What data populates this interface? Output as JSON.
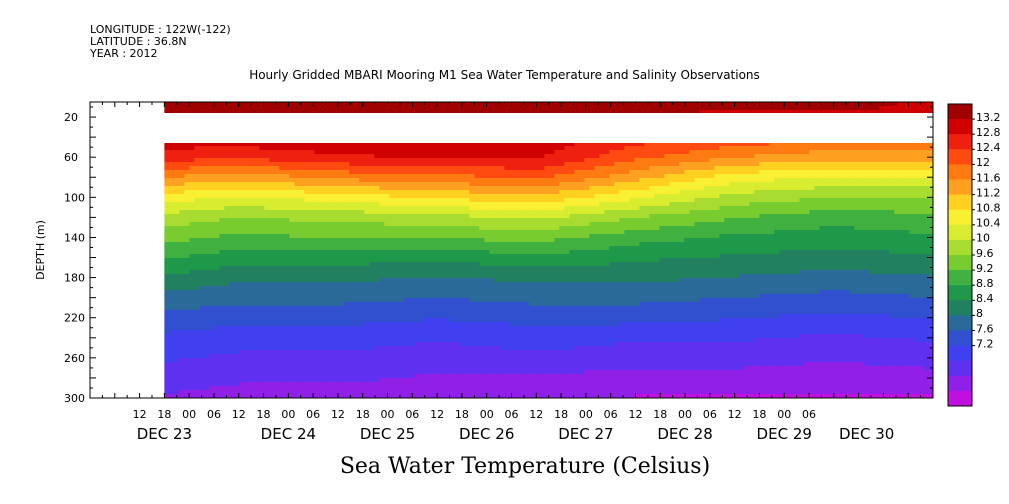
{
  "meta": {
    "longitude": "LONGITUDE : 122W(-122)",
    "latitude": "LATITUDE : 36.8N",
    "year": "YEAR : 2012"
  },
  "chart_data": {
    "type": "heatmap",
    "title": "Hourly Gridded MBARI Mooring M1 Sea Water Temperature and Salinity Observations",
    "subtitle": "Sea Water Temperature (Celsius)",
    "ylabel": "DEPTH (m)",
    "xlabel": "",
    "x_range_hours": [
      0,
      204
    ],
    "ylim": [
      300,
      5
    ],
    "y_ticks": [
      20,
      60,
      100,
      140,
      180,
      220,
      260,
      300
    ],
    "x_hour_labels": [
      "12",
      "18",
      "00",
      "06",
      "12",
      "18",
      "00",
      "06",
      "12",
      "18",
      "00",
      "06",
      "12",
      "18",
      "00",
      "06",
      "12",
      "18",
      "00",
      "06",
      "12",
      "18",
      "00",
      "06",
      "12",
      "18",
      "00",
      "06"
    ],
    "x_day_labels": [
      "DEC 23",
      "DEC 24",
      "DEC 25",
      "DEC 26",
      "DEC 27",
      "DEC 28",
      "DEC 29",
      "DEC 30"
    ],
    "colorbar_levels": [
      "13.2",
      "12.8",
      "12.4",
      "12",
      "11.6",
      "11.2",
      "10.8",
      "10.4",
      "10",
      "9.6",
      "9.2",
      "8.8",
      "8.4",
      "8",
      "7.6",
      "7.2"
    ],
    "colorbar_colors": [
      "#a00000",
      "#d00000",
      "#f02010",
      "#ff4a10",
      "#ff7a10",
      "#ffa020",
      "#ffd020",
      "#f8f030",
      "#d8ec30",
      "#a8dc30",
      "#78cc30",
      "#40b040",
      "#20984a",
      "#208060",
      "#2a6a9a",
      "#3050d0",
      "#4040f0",
      "#6030f0",
      "#9020e8",
      "#c010e0"
    ],
    "depths": [
      10,
      40,
      60,
      80,
      100,
      120,
      140,
      160,
      180,
      200,
      220,
      240,
      260,
      280,
      300
    ],
    "profile_hours": [
      18,
      36,
      60,
      84,
      108,
      132,
      156,
      180,
      204
    ],
    "profiles": [
      [
        13.2,
        13.0,
        12.6,
        11.8,
        11.0,
        10.4,
        10.0,
        9.6,
        9.2,
        8.8,
        8.5,
        8.2,
        8.0,
        7.8,
        7.6
      ],
      [
        13.2,
        13.0,
        12.5,
        11.6,
        10.8,
        10.2,
        9.8,
        9.4,
        9.0,
        8.7,
        8.4,
        8.1,
        7.9,
        7.7,
        7.5
      ],
      [
        13.2,
        13.1,
        12.7,
        11.9,
        11.0,
        10.3,
        9.9,
        9.4,
        9.0,
        8.7,
        8.4,
        8.1,
        7.9,
        7.7,
        7.5
      ],
      [
        13.2,
        13.2,
        12.8,
        12.0,
        11.2,
        10.4,
        9.9,
        9.3,
        8.9,
        8.6,
        8.3,
        8.0,
        7.8,
        7.6,
        7.4
      ],
      [
        13.2,
        13.0,
        12.8,
        12.2,
        11.4,
        10.6,
        10.0,
        9.5,
        9.0,
        8.7,
        8.4,
        8.1,
        7.9,
        7.6,
        7.4
      ],
      [
        13.2,
        12.6,
        12.2,
        11.6,
        10.9,
        10.2,
        9.7,
        9.3,
        9.0,
        8.7,
        8.4,
        8.0,
        7.8,
        7.5,
        7.3
      ],
      [
        13.2,
        12.4,
        11.8,
        11.0,
        10.4,
        9.9,
        9.5,
        9.2,
        8.9,
        8.6,
        8.3,
        8.0,
        7.8,
        7.5,
        7.3
      ],
      [
        13.2,
        12.2,
        11.6,
        10.8,
        10.2,
        9.7,
        9.4,
        9.1,
        8.8,
        8.5,
        8.2,
        7.9,
        7.7,
        7.4,
        7.3
      ],
      [
        13.0,
        12.2,
        11.6,
        10.8,
        10.2,
        9.8,
        9.5,
        9.2,
        8.9,
        8.6,
        8.3,
        8.0,
        7.8,
        7.5,
        7.3
      ]
    ]
  }
}
